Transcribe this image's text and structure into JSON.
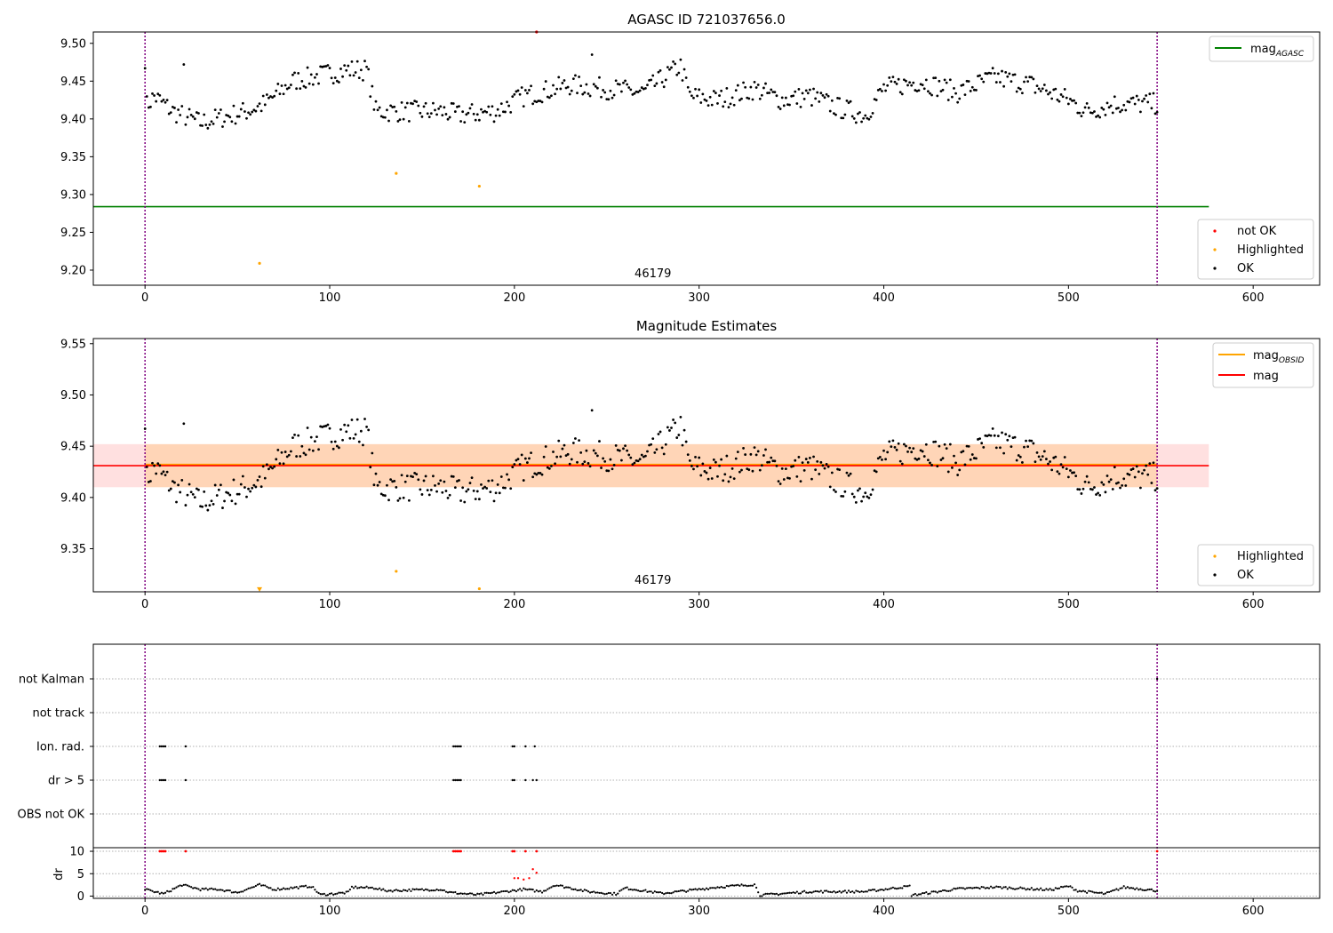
{
  "chart_data": [
    {
      "type": "scatter",
      "title": "AGASC ID 721037656.0",
      "xlim": [
        -28,
        636
      ],
      "ylim": [
        9.18,
        9.515
      ],
      "xticks": [
        0,
        100,
        200,
        300,
        400,
        500,
        600
      ],
      "xtick_labels": [
        "0",
        "100",
        "200",
        "300",
        "400",
        "500",
        "600"
      ],
      "yticks": [
        9.2,
        9.25,
        9.3,
        9.35,
        9.4,
        9.45,
        9.5
      ],
      "ytick_labels": [
        "9.20",
        "9.25",
        "9.30",
        "9.35",
        "9.40",
        "9.45",
        "9.50"
      ],
      "vlines": [
        0,
        548
      ],
      "mag_agasc": 9.284,
      "mag_agasc_xrange": [
        -28,
        576
      ],
      "obsid_label": "46179",
      "obsid_label_x": 275,
      "highlighted_points": [
        [
          136,
          9.328
        ],
        [
          181,
          9.311
        ],
        [
          62,
          9.209
        ]
      ],
      "not_ok_points": [
        [
          212,
          9.515
        ]
      ],
      "legend_top": [
        {
          "label": "mag",
          "sub": "AGASC",
          "color": "#008000"
        }
      ],
      "legend_bottom": [
        {
          "label": "not OK",
          "color": "#ff0000"
        },
        {
          "label": "Highlighted",
          "color": "#ffa500"
        },
        {
          "label": "OK",
          "color": "#000000"
        }
      ]
    },
    {
      "type": "scatter",
      "title": "Magnitude Estimates",
      "xlim": [
        -28,
        636
      ],
      "ylim": [
        9.308,
        9.555
      ],
      "xticks": [
        0,
        100,
        200,
        300,
        400,
        500,
        600
      ],
      "xtick_labels": [
        "0",
        "100",
        "200",
        "300",
        "400",
        "500",
        "600"
      ],
      "yticks": [
        9.35,
        9.4,
        9.45,
        9.5,
        9.55
      ],
      "ytick_labels": [
        "9.35",
        "9.40",
        "9.45",
        "9.50",
        "9.55"
      ],
      "vlines": [
        0,
        548
      ],
      "mag": 9.431,
      "mag_band": [
        9.41,
        9.452
      ],
      "mag_xrange": [
        -28,
        576
      ],
      "mag_obsid": 9.432,
      "mag_obsid_band": [
        9.41,
        9.452
      ],
      "mag_obsid_xrange": [
        0,
        548
      ],
      "obsid_label": "46179",
      "obsid_label_x": 275,
      "highlighted_points": [
        [
          136,
          9.328
        ],
        [
          181,
          9.311
        ]
      ],
      "highlighted_markers": [
        [
          62,
          9.309
        ]
      ],
      "legend_top": [
        {
          "label": "mag",
          "sub": "OBSID",
          "color": "#ffa500"
        },
        {
          "label": "mag",
          "sub": "",
          "color": "#ff0000"
        }
      ],
      "legend_bottom": [
        {
          "label": "Highlighted",
          "color": "#ffa500"
        },
        {
          "label": "OK",
          "color": "#000000"
        }
      ]
    },
    {
      "type": "scatter",
      "title": "",
      "xlim": [
        -28,
        636
      ],
      "flag_categories": [
        "not Kalman",
        "not track",
        "Ion. rad.",
        "dr > 5",
        "OBS not OK"
      ],
      "flag_points": {
        "Ion. rad.": [
          8,
          9,
          10,
          11,
          22,
          167,
          168,
          169,
          170,
          171,
          199,
          200,
          206,
          211
        ],
        "dr > 5": [
          8,
          9,
          10,
          11,
          22,
          167,
          168,
          169,
          170,
          171,
          199,
          200,
          206,
          210,
          212
        ],
        "not Kalman": [
          548
        ]
      },
      "dr_ylim": [
        -0.5,
        10.8
      ],
      "dr_yticks": [
        0,
        5,
        10
      ],
      "dr_ytick_labels": [
        "0",
        "5",
        "10"
      ],
      "dr_ylabel": "dr",
      "dr_clipped_x": [
        8,
        9,
        10,
        11,
        22,
        167,
        168,
        169,
        170,
        171,
        199,
        200,
        206,
        212,
        548
      ],
      "dr_red_points": [
        [
          200,
          4
        ],
        [
          202,
          4
        ],
        [
          205,
          3.7
        ],
        [
          208,
          4
        ],
        [
          210,
          6
        ],
        [
          212,
          5.2
        ]
      ],
      "xticks": [
        0,
        100,
        200,
        300,
        400,
        500,
        600
      ],
      "xtick_labels": [
        "0",
        "100",
        "200",
        "300",
        "400",
        "500",
        "600"
      ]
    }
  ]
}
